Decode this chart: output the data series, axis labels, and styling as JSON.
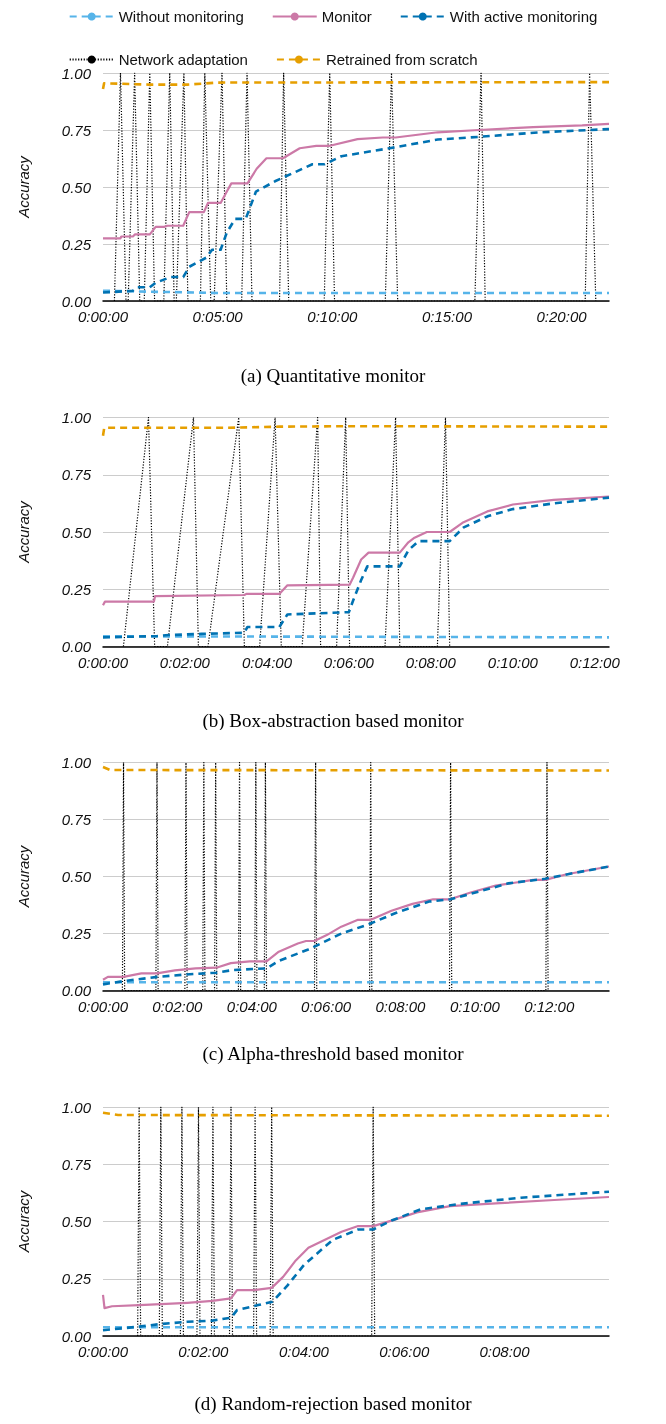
{
  "chart_data": [
    {
      "type": "line",
      "title": "(a) Quantitative monitor",
      "ylabel": "Accuracy",
      "legend": "top",
      "grid": "y",
      "marker": "none",
      "xlim": [
        0,
        0.3678
      ],
      "xticks": [
        {
          "value": 0,
          "label": "0:00:00"
        },
        {
          "value": 0.0833,
          "label": "0:05:00"
        },
        {
          "value": 0.1667,
          "label": "0:10:00"
        },
        {
          "value": 0.25,
          "label": "0:15:00"
        },
        {
          "value": 0.3333,
          "label": "0:20:00"
        }
      ],
      "ylim": [
        0,
        1
      ],
      "yticks": [
        {
          "value": 0,
          "label": "0.00"
        },
        {
          "value": 0.25,
          "label": "0.25"
        },
        {
          "value": 0.5,
          "label": "0.50"
        },
        {
          "value": 0.75,
          "label": "0.75"
        },
        {
          "value": 1,
          "label": "1.00"
        }
      ],
      "series": [
        {
          "name": "Without monitoring",
          "color": "#56b4e9",
          "line_style": "dashed",
          "x": [
            0,
            0.0833,
            0.3678
          ],
          "values": [
            0.045,
            0.035,
            0.035
          ]
        },
        {
          "name": "Monitor",
          "color": "#cc79a7",
          "line_style": "solid",
          "x": [
            0,
            0.0127,
            0.0133,
            0.0217,
            0.0233,
            0.034,
            0.0383,
            0.0445,
            0.0467,
            0.0583,
            0.0627,
            0.0733,
            0.0763,
            0.0855,
            0.09,
            0.0933,
            0.105,
            0.1117,
            0.1188,
            0.1308,
            0.143,
            0.155,
            0.1642,
            0.185,
            0.2033,
            0.2127,
            0.2433,
            0.2733,
            0.3127,
            0.3483,
            0.3678
          ],
          "values": [
            0.275,
            0.275,
            0.283,
            0.283,
            0.292,
            0.292,
            0.325,
            0.325,
            0.33,
            0.33,
            0.39,
            0.39,
            0.43,
            0.43,
            0.48,
            0.516,
            0.516,
            0.58,
            0.626,
            0.626,
            0.67,
            0.68,
            0.68,
            0.71,
            0.717,
            0.717,
            0.74,
            0.75,
            0.763,
            0.77,
            0.777
          ]
        },
        {
          "name": "With active monitoring",
          "color": "#0072b2",
          "line_style": "dashed",
          "x": [
            0,
            0.0217,
            0.025,
            0.034,
            0.0383,
            0.0492,
            0.0583,
            0.0627,
            0.075,
            0.0793,
            0.0855,
            0.09,
            0.096,
            0.1037,
            0.1112,
            0.125,
            0.1522,
            0.1612,
            0.1733,
            0.2083,
            0.2433,
            0.2733,
            0.3183,
            0.3678
          ],
          "values": [
            0.037,
            0.045,
            0.06,
            0.06,
            0.08,
            0.105,
            0.105,
            0.15,
            0.19,
            0.225,
            0.225,
            0.3,
            0.36,
            0.36,
            0.48,
            0.525,
            0.6,
            0.6,
            0.635,
            0.67,
            0.708,
            0.72,
            0.74,
            0.754
          ]
        },
        {
          "name": "Network adaptation",
          "color": "#000000",
          "line_style": "dotted",
          "x": [
            0.0083,
            0.0127,
            0.0167,
            0.0183,
            0.023,
            0.0267,
            0.03,
            0.034,
            0.0375,
            0.0442,
            0.0485,
            0.0517,
            0.0533,
            0.0588,
            0.0617,
            0.0708,
            0.074,
            0.0783,
            0.0808,
            0.0865,
            0.09,
            0.1008,
            0.1047,
            0.1083,
            0.1283,
            0.1313,
            0.135,
            0.1608,
            0.1648,
            0.1683,
            0.2052,
            0.2097,
            0.2142,
            0.2703,
            0.2748,
            0.2778,
            0.3505,
            0.3537,
            0.3582
          ],
          "values": [
            0,
            1,
            0,
            0,
            1,
            0,
            0,
            1,
            0,
            0,
            1,
            0,
            0,
            1,
            0,
            0,
            1,
            0,
            0,
            1,
            0,
            0,
            1,
            0,
            0,
            1,
            0,
            0,
            1,
            0,
            0,
            1,
            0,
            0,
            1,
            0,
            0,
            1,
            0
          ]
        },
        {
          "name": "Retrained from scratch",
          "color": "#e69f00",
          "line_style": "dashed",
          "x": [
            0,
            0.0008,
            0.0333,
            0.0612,
            0.0833,
            0.3678
          ],
          "values": [
            0.93,
            0.955,
            0.949,
            0.949,
            0.958,
            0.96
          ]
        }
      ]
    },
    {
      "type": "line",
      "title": "(b) Box-abstraction based monitor",
      "ylabel": "Accuracy",
      "grid": "y",
      "marker": "none",
      "xlim": [
        0,
        0.2058
      ],
      "xticks": [
        {
          "value": 0,
          "label": "0:00:00"
        },
        {
          "value": 0.0333,
          "label": "0:02:00"
        },
        {
          "value": 0.0667,
          "label": "0:04:00"
        },
        {
          "value": 0.1,
          "label": "0:06:00"
        },
        {
          "value": 0.1333,
          "label": "0:08:00"
        },
        {
          "value": 0.1667,
          "label": "0:10:00"
        },
        {
          "value": 0.2,
          "label": "0:12:00"
        }
      ],
      "ylim": [
        0,
        1
      ],
      "yticks": [
        {
          "value": 0,
          "label": "0.00"
        },
        {
          "value": 0.25,
          "label": "0.25"
        },
        {
          "value": 0.5,
          "label": "0.50"
        },
        {
          "value": 0.75,
          "label": "0.75"
        },
        {
          "value": 1,
          "label": "1.00"
        }
      ],
      "series": [
        {
          "color": "#56b4e9",
          "line_style": "dashed",
          "x": [
            0,
            0.2058
          ],
          "values": [
            0.045,
            0.04
          ]
        },
        {
          "color": "#cc79a7",
          "line_style": "solid",
          "x": [
            0,
            0.0008,
            0.0207,
            0.0212,
            0.0575,
            0.0583,
            0.0718,
            0.075,
            0.1003,
            0.1017,
            0.105,
            0.108,
            0.1207,
            0.1242,
            0.1267,
            0.1317,
            0.141,
            0.1462,
            0.1563,
            0.1667,
            0.1833,
            0.2058
          ],
          "values": [
            0.18,
            0.196,
            0.196,
            0.22,
            0.225,
            0.23,
            0.23,
            0.267,
            0.27,
            0.3,
            0.38,
            0.41,
            0.41,
            0.455,
            0.475,
            0.5,
            0.5,
            0.54,
            0.59,
            0.62,
            0.64,
            0.655
          ]
        },
        {
          "color": "#0072b2",
          "line_style": "dashed",
          "x": [
            0,
            0.0217,
            0.0267,
            0.04,
            0.0575,
            0.0587,
            0.0717,
            0.075,
            0.1,
            0.1017,
            0.105,
            0.1075,
            0.1207,
            0.1242,
            0.1283,
            0.141,
            0.1467,
            0.1567,
            0.1667,
            0.1833,
            0.2058
          ],
          "values": [
            0.04,
            0.045,
            0.05,
            0.055,
            0.06,
            0.085,
            0.085,
            0.14,
            0.15,
            0.2,
            0.29,
            0.35,
            0.35,
            0.42,
            0.46,
            0.46,
            0.52,
            0.57,
            0.6,
            0.625,
            0.65
          ]
        },
        {
          "color": "#000000",
          "line_style": "dotted",
          "x": [
            0.0083,
            0.0185,
            0.021,
            0.0262,
            0.0368,
            0.0388,
            0.0427,
            0.0552,
            0.0575,
            0.0637,
            0.07,
            0.0725,
            0.081,
            0.0873,
            0.0885,
            0.095,
            0.0987,
            0.1003,
            0.1147,
            0.119,
            0.1207,
            0.136,
            0.1393,
            0.141
          ],
          "values": [
            0,
            1,
            0,
            0,
            1,
            0,
            0,
            1,
            0,
            0,
            1,
            0,
            0,
            1,
            0,
            0,
            1,
            0,
            0,
            1,
            0,
            0,
            1,
            0
          ]
        },
        {
          "color": "#e69f00",
          "line_style": "dashed",
          "x": [
            0,
            0.0005,
            0.05,
            0.0717,
            0.1,
            0.2058
          ],
          "values": [
            0.92,
            0.955,
            0.955,
            0.96,
            0.962,
            0.96
          ]
        }
      ]
    },
    {
      "type": "line",
      "title": "(c) Alpha-threshold based monitor",
      "ylabel": "Accuracy",
      "grid": "y",
      "marker": "none",
      "xlim": [
        0,
        0.2268
      ],
      "xticks": [
        {
          "value": 0,
          "label": "0:00:00"
        },
        {
          "value": 0.0333,
          "label": "0:02:00"
        },
        {
          "value": 0.0667,
          "label": "0:04:00"
        },
        {
          "value": 0.1,
          "label": "0:06:00"
        },
        {
          "value": 0.1333,
          "label": "0:08:00"
        },
        {
          "value": 0.1667,
          "label": "0:10:00"
        },
        {
          "value": 0.2,
          "label": "0:12:00"
        }
      ],
      "ylim": [
        0,
        1
      ],
      "yticks": [
        {
          "value": 0,
          "label": "0.00"
        },
        {
          "value": 0.25,
          "label": "0.25"
        },
        {
          "value": 0.5,
          "label": "0.50"
        },
        {
          "value": 0.75,
          "label": "0.75"
        },
        {
          "value": 1,
          "label": "1.00"
        }
      ],
      "series": [
        {
          "color": "#56b4e9",
          "line_style": "dashed",
          "x": [
            0,
            0.2268
          ],
          "values": [
            0.036,
            0.036
          ]
        },
        {
          "color": "#cc79a7",
          "line_style": "solid",
          "x": [
            0,
            0.0022,
            0.0092,
            0.0172,
            0.0242,
            0.0322,
            0.0415,
            0.0508,
            0.0573,
            0.0658,
            0.0733,
            0.0788,
            0.0873,
            0.091,
            0.0947,
            0.1003,
            0.1068,
            0.1143,
            0.12,
            0.1293,
            0.1387,
            0.148,
            0.1555,
            0.1648,
            0.176,
            0.1928,
            0.1983,
            0.2078,
            0.2268
          ],
          "values": [
            0.047,
            0.06,
            0.06,
            0.075,
            0.075,
            0.088,
            0.097,
            0.1,
            0.12,
            0.128,
            0.128,
            0.17,
            0.206,
            0.217,
            0.217,
            0.243,
            0.28,
            0.31,
            0.31,
            0.35,
            0.38,
            0.4,
            0.4,
            0.43,
            0.46,
            0.485,
            0.485,
            0.51,
            0.544
          ]
        },
        {
          "color": "#0072b2",
          "line_style": "dashed",
          "x": [
            0,
            0.0097,
            0.0247,
            0.0368,
            0.0508,
            0.0583,
            0.0733,
            0.0788,
            0.092,
            0.0957,
            0.1068,
            0.119,
            0.1312,
            0.1462,
            0.1558,
            0.1685,
            0.1817,
            0.1983,
            0.2115,
            0.2268
          ],
          "values": [
            0.027,
            0.042,
            0.06,
            0.07,
            0.078,
            0.09,
            0.097,
            0.13,
            0.18,
            0.197,
            0.25,
            0.29,
            0.34,
            0.39,
            0.4,
            0.434,
            0.47,
            0.49,
            0.516,
            0.544
          ]
        },
        {
          "color": "#000000",
          "line_style": "dotted",
          "x": [
            0.0087,
            0.0092,
            0.0097,
            0.0237,
            0.0242,
            0.0247,
            0.0367,
            0.0372,
            0.0377,
            0.0447,
            0.0452,
            0.0457,
            0.05,
            0.0505,
            0.051,
            0.0607,
            0.0612,
            0.0617,
            0.068,
            0.0685,
            0.069,
            0.0723,
            0.0728,
            0.0733,
            0.0948,
            0.0953,
            0.0958,
            0.1195,
            0.12,
            0.1205,
            0.1553,
            0.1558,
            0.1563,
            0.1985,
            0.199,
            0.1995
          ],
          "values": [
            0,
            1,
            0,
            0,
            1,
            0,
            0,
            1,
            0,
            0,
            1,
            0,
            0,
            1,
            0,
            0,
            1,
            0,
            0,
            1,
            0,
            0,
            1,
            0,
            0,
            1,
            0,
            0,
            1,
            0,
            0,
            1,
            0,
            0,
            1,
            0
          ]
        },
        {
          "color": "#e69f00",
          "line_style": "dashed",
          "x": [
            0,
            0.0033,
            0.2268
          ],
          "values": [
            0.98,
            0.967,
            0.965
          ]
        }
      ]
    },
    {
      "type": "line",
      "title": "(d) Random-rejection based monitor",
      "ylabel": "Accuracy",
      "grid": "y",
      "marker": "none",
      "xlim": [
        0,
        0.168
      ],
      "xticks": [
        {
          "value": 0,
          "label": "0:00:00"
        },
        {
          "value": 0.0333,
          "label": "0:02:00"
        },
        {
          "value": 0.0667,
          "label": "0:04:00"
        },
        {
          "value": 0.1,
          "label": "0:06:00"
        },
        {
          "value": 0.1333,
          "label": "0:08:00"
        }
      ],
      "ylim": [
        0,
        1
      ],
      "yticks": [
        {
          "value": 0,
          "label": "0.00"
        },
        {
          "value": 0.25,
          "label": "0.25"
        },
        {
          "value": 0.5,
          "label": "0.50"
        },
        {
          "value": 0.75,
          "label": "0.75"
        },
        {
          "value": 1,
          "label": "1.00"
        }
      ],
      "series": [
        {
          "color": "#56b4e9",
          "line_style": "dashed",
          "x": [
            0,
            0.168
          ],
          "values": [
            0.038,
            0.038
          ]
        },
        {
          "color": "#cc79a7",
          "line_style": "solid",
          "x": [
            0,
            0.0005,
            0.003,
            0.012,
            0.021,
            0.028,
            0.0363,
            0.0425,
            0.0445,
            0.05,
            0.056,
            0.0598,
            0.064,
            0.0682,
            0.0737,
            0.0792,
            0.0847,
            0.0897,
            0.0958,
            0.1042,
            0.1152,
            0.1318,
            0.1498,
            0.168
          ],
          "values": [
            0.18,
            0.122,
            0.13,
            0.135,
            0.14,
            0.145,
            0.153,
            0.164,
            0.2,
            0.2,
            0.21,
            0.258,
            0.33,
            0.385,
            0.42,
            0.455,
            0.48,
            0.48,
            0.504,
            0.54,
            0.567,
            0.58,
            0.594,
            0.607
          ]
        },
        {
          "color": "#0072b2",
          "line_style": "dashed",
          "x": [
            0,
            0.0113,
            0.0197,
            0.028,
            0.0363,
            0.0425,
            0.0445,
            0.0515,
            0.0563,
            0.0612,
            0.0667,
            0.0763,
            0.0847,
            0.0897,
            0.0958,
            0.1055,
            0.118,
            0.1387,
            0.168
          ],
          "values": [
            0.025,
            0.04,
            0.053,
            0.062,
            0.067,
            0.08,
            0.113,
            0.135,
            0.15,
            0.22,
            0.31,
            0.42,
            0.465,
            0.465,
            0.504,
            0.553,
            0.576,
            0.604,
            0.63
          ]
        },
        {
          "color": "#000000",
          "line_style": "dotted",
          "x": [
            0.0115,
            0.012,
            0.0125,
            0.0187,
            0.0192,
            0.0197,
            0.0257,
            0.0262,
            0.0267,
            0.0312,
            0.0317,
            0.0322,
            0.036,
            0.0365,
            0.037,
            0.042,
            0.0425,
            0.043,
            0.05,
            0.0505,
            0.051,
            0.0555,
            0.056,
            0.0565,
            0.0892,
            0.0897,
            0.0902
          ],
          "values": [
            0,
            1,
            0,
            0,
            1,
            0,
            0,
            1,
            0,
            0,
            1,
            0,
            0,
            1,
            0,
            0,
            1,
            0,
            0,
            1,
            0,
            0,
            1,
            0,
            0,
            1,
            0
          ]
        },
        {
          "color": "#e69f00",
          "line_style": "dashed",
          "x": [
            0,
            0.005,
            0.168
          ],
          "values": [
            0.975,
            0.965,
            0.962
          ]
        }
      ]
    }
  ]
}
